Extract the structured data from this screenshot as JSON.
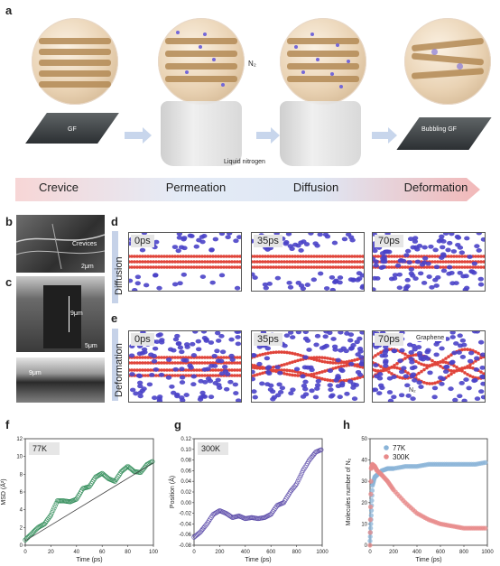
{
  "panels": {
    "a": "a",
    "b": "b",
    "c": "c",
    "d": "d",
    "e": "e",
    "f": "f",
    "g": "g",
    "h": "h"
  },
  "schematic": {
    "labels": {
      "gf": "GF",
      "n2": "N₂",
      "liquid_nitrogen": "Liquid nitrogen",
      "bubbling_gf": "Bubbling GF"
    },
    "stages": [
      "Crevice",
      "Permeation",
      "Diffusion",
      "Deformation"
    ]
  },
  "sem": {
    "crevices": "Crevices",
    "scale_b": "2μm",
    "thickness_top": "9μm",
    "scale_c": "5μm",
    "thickness_bottom": "9μm"
  },
  "simulation": {
    "diffusion_label": "Diffusion",
    "deformation_label": "Deformation",
    "times": [
      "0ps",
      "35ps",
      "70ps"
    ],
    "graphene_label": "Graphene",
    "n2_label": "N₂",
    "colors": {
      "graphene": "#e0443a",
      "n2": "#4a43c8"
    }
  },
  "chart_data": [
    {
      "type": "scatter",
      "panel": "f",
      "annotation": "77K",
      "xlabel": "Time (ps)",
      "ylabel": "MSD (Å²)",
      "xlim": [
        0,
        100
      ],
      "ylim": [
        0,
        12
      ],
      "xticks": [
        "0",
        "20",
        "40",
        "60",
        "80",
        "100"
      ],
      "yticks": [
        "0",
        "2",
        "4",
        "6",
        "8",
        "10",
        "12"
      ],
      "color": "#2e8b57",
      "x": [
        0,
        5,
        10,
        15,
        20,
        25,
        30,
        35,
        40,
        45,
        50,
        55,
        60,
        65,
        70,
        75,
        80,
        85,
        90,
        95,
        100
      ],
      "y": [
        0.6,
        1.3,
        2.0,
        2.4,
        3.4,
        5.0,
        5.0,
        4.9,
        5.2,
        6.4,
        6.6,
        7.7,
        8.1,
        7.5,
        7.2,
        8.3,
        8.9,
        8.3,
        8.2,
        9.1,
        9.5
      ],
      "fit_line": {
        "x": [
          0,
          100
        ],
        "y": [
          0.5,
          9.3
        ]
      }
    },
    {
      "type": "scatter",
      "panel": "g",
      "annotation": "300K",
      "xlabel": "Time (ps)",
      "ylabel": "Position (Å)",
      "xlim": [
        0,
        1000
      ],
      "ylim": [
        -0.08,
        0.12
      ],
      "xticks": [
        "0",
        "200",
        "400",
        "600",
        "800",
        "1000"
      ],
      "yticks": [
        "-0.08",
        "-0.06",
        "-0.04",
        "-0.02",
        "0.00",
        "0.02",
        "0.04",
        "0.06",
        "0.08",
        "0.10",
        "0.12"
      ],
      "color": "#5b4aa8",
      "x": [
        0,
        50,
        100,
        150,
        200,
        250,
        300,
        350,
        400,
        450,
        500,
        550,
        600,
        650,
        700,
        750,
        800,
        850,
        900,
        950,
        1000
      ],
      "y": [
        -0.065,
        -0.055,
        -0.04,
        -0.022,
        -0.015,
        -0.02,
        -0.028,
        -0.025,
        -0.03,
        -0.028,
        -0.03,
        -0.028,
        -0.022,
        -0.005,
        0.0,
        0.02,
        0.035,
        0.06,
        0.08,
        0.095,
        0.1
      ]
    },
    {
      "type": "scatter",
      "panel": "h",
      "xlabel": "Time (ps)",
      "ylabel": "Molecules number of N₂",
      "xlim": [
        0,
        1000
      ],
      "ylim": [
        0,
        50
      ],
      "xticks": [
        "0",
        "200",
        "400",
        "600",
        "800",
        "1000"
      ],
      "yticks": [
        "0",
        "10",
        "20",
        "30",
        "40",
        "50"
      ],
      "series": [
        {
          "name": "77K",
          "color": "#8ab4d8",
          "x": [
            0,
            10,
            20,
            40,
            60,
            100,
            150,
            200,
            300,
            400,
            500,
            600,
            700,
            800,
            900,
            1000
          ],
          "y": [
            2,
            14,
            28,
            32,
            33,
            35,
            36,
            36,
            37,
            37,
            38,
            38,
            38,
            38,
            38,
            39
          ]
        },
        {
          "name": "300K",
          "color": "#e88a8a",
          "x": [
            0,
            10,
            20,
            40,
            60,
            100,
            150,
            200,
            300,
            400,
            500,
            600,
            700,
            800,
            900,
            1000
          ],
          "y": [
            0,
            36,
            38,
            37,
            35,
            33,
            30,
            26,
            20,
            15,
            12,
            10,
            9,
            8,
            8,
            8
          ]
        }
      ]
    }
  ]
}
